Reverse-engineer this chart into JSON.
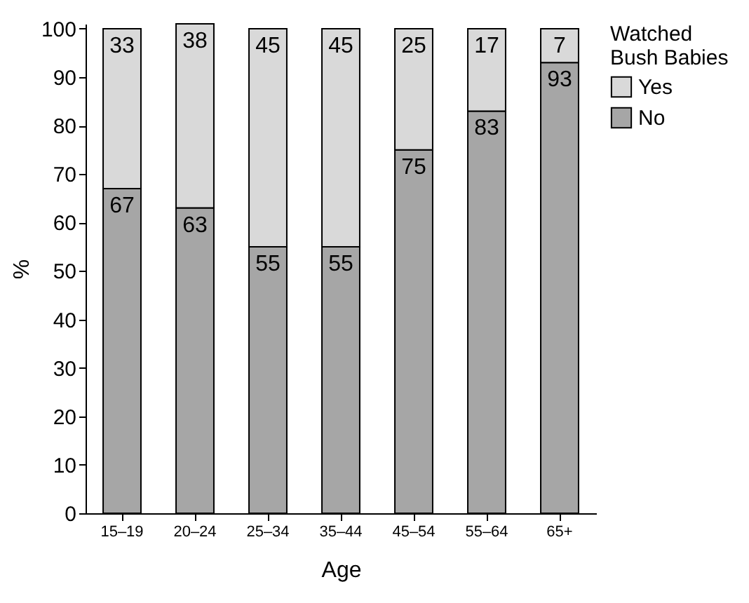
{
  "chart_data": {
    "type": "bar",
    "stacked": true,
    "xlabel": "Age",
    "ylabel": "%",
    "legend_title": "Watched Bush Babies",
    "categories": [
      "15–19",
      "20–24",
      "25–34",
      "35–44",
      "45–54",
      "55–64",
      "65+"
    ],
    "series": [
      {
        "name": "No",
        "color": "#a6a6a6",
        "values": [
          67,
          63,
          55,
          55,
          75,
          83,
          93
        ]
      },
      {
        "name": "Yes",
        "color": "#d9d9d9",
        "values": [
          33,
          38,
          45,
          45,
          25,
          17,
          7
        ]
      }
    ],
    "ylim": [
      0,
      101
    ],
    "yticks": [
      0,
      10,
      20,
      30,
      40,
      50,
      60,
      70,
      80,
      90,
      100
    ],
    "grid": false,
    "legend": "right",
    "data_labels": true
  }
}
